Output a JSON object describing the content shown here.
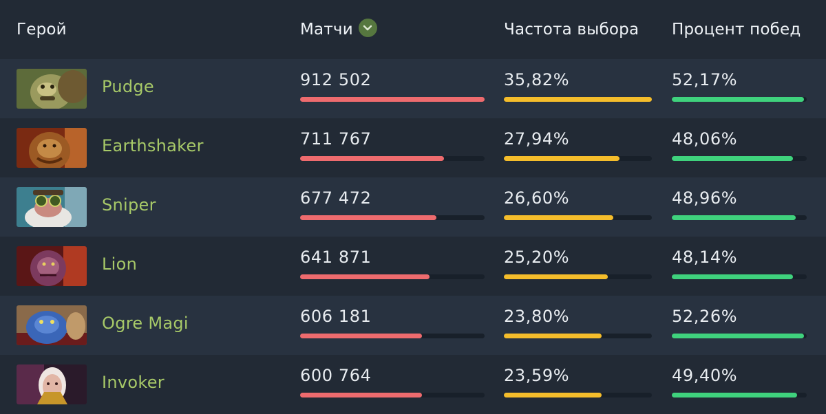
{
  "header": {
    "hero": "Герой",
    "matches": "Матчи",
    "pick_rate": "Частота выбора",
    "win_rate": "Процент побед",
    "sort_icon": "chevron-down-icon"
  },
  "colors": {
    "matches_bar": "#ee6b6e",
    "pick_bar": "#f5bd2b",
    "win_bar": "#3fd27d",
    "hero_name": "#a7c968"
  },
  "rows": [
    {
      "hero": "Pudge",
      "matches": "912 502",
      "matches_fraction": 1.0,
      "pick_rate": "35,82%",
      "pick_fraction": 1.0,
      "win_rate": "52,17%",
      "win_fraction": 0.98
    },
    {
      "hero": "Earthshaker",
      "matches": "711 767",
      "matches_fraction": 0.78,
      "pick_rate": "27,94%",
      "pick_fraction": 0.78,
      "win_rate": "48,06%",
      "win_fraction": 0.9
    },
    {
      "hero": "Sniper",
      "matches": "677 472",
      "matches_fraction": 0.74,
      "pick_rate": "26,60%",
      "pick_fraction": 0.74,
      "win_rate": "48,96%",
      "win_fraction": 0.92
    },
    {
      "hero": "Lion",
      "matches": "641 871",
      "matches_fraction": 0.7,
      "pick_rate": "25,20%",
      "pick_fraction": 0.7,
      "win_rate": "48,14%",
      "win_fraction": 0.9
    },
    {
      "hero": "Ogre Magi",
      "matches": "606 181",
      "matches_fraction": 0.66,
      "pick_rate": "23,80%",
      "pick_fraction": 0.66,
      "win_rate": "52,26%",
      "win_fraction": 0.98
    },
    {
      "hero": "Invoker",
      "matches": "600 764",
      "matches_fraction": 0.66,
      "pick_rate": "23,59%",
      "pick_fraction": 0.66,
      "win_rate": "49,40%",
      "win_fraction": 0.93
    }
  ]
}
